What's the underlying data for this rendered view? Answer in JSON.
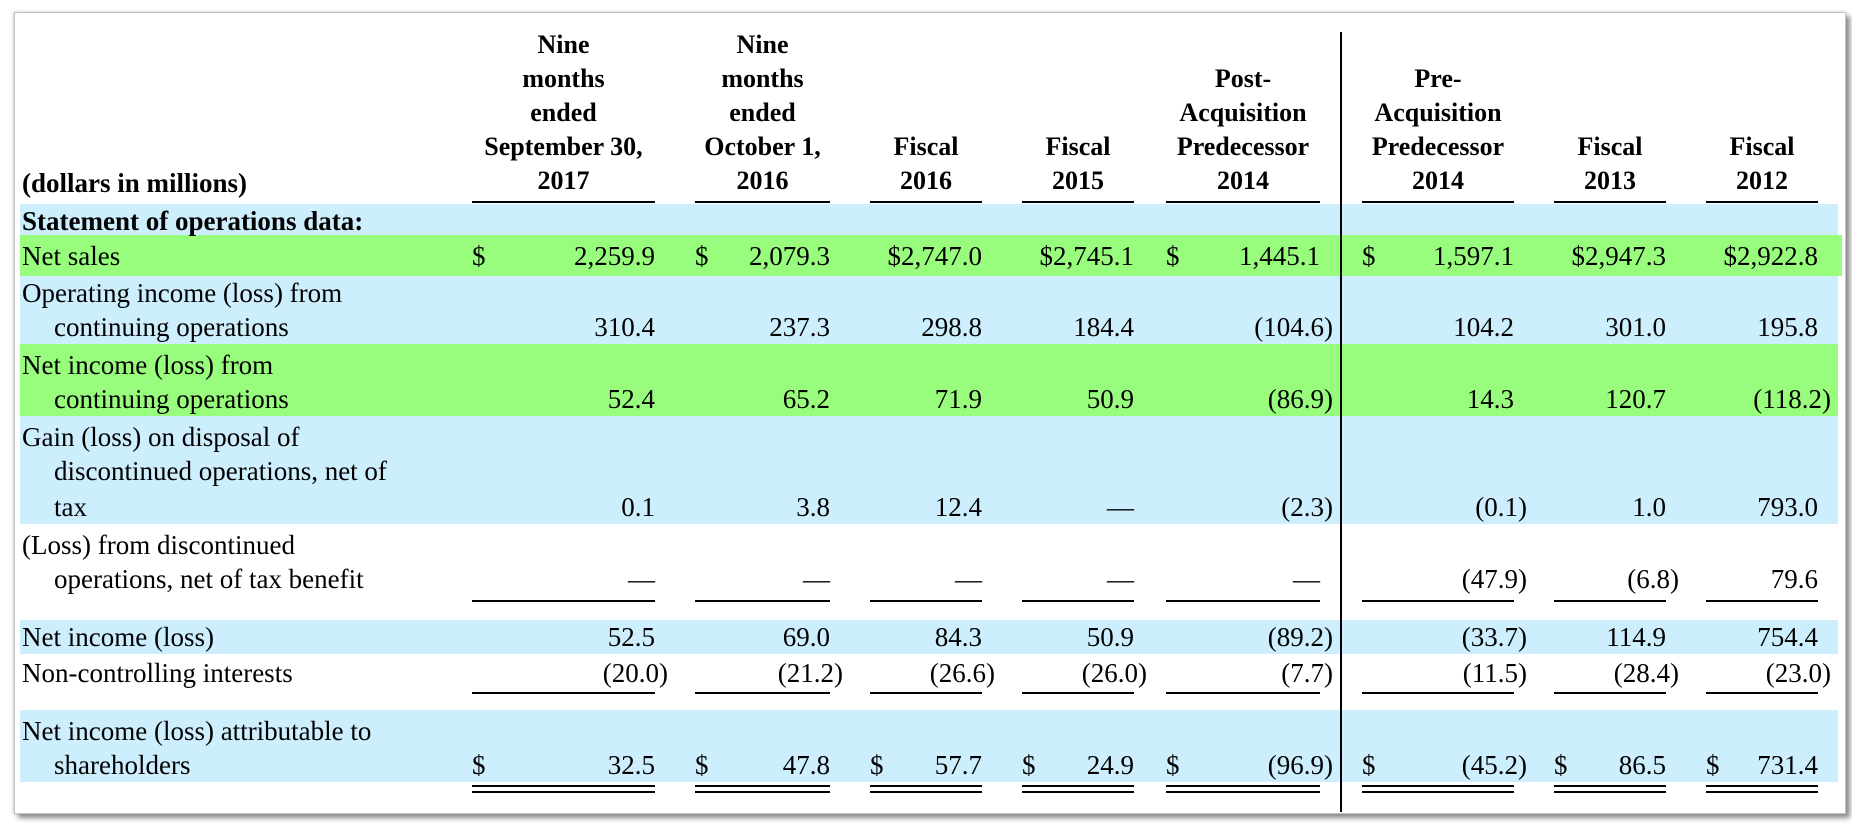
{
  "table": {
    "units_label": "(dollars in millions)",
    "columns": [
      {
        "lines": [
          "Nine",
          "months",
          "ended",
          "September 30,",
          "2017"
        ]
      },
      {
        "lines": [
          "Nine",
          "months",
          "ended",
          "October 1,",
          "2016"
        ]
      },
      {
        "lines": [
          "Fiscal",
          "2016"
        ]
      },
      {
        "lines": [
          "Fiscal",
          "2015"
        ]
      },
      {
        "lines": [
          "Post-",
          "Acquisition",
          "Predecessor",
          "2014"
        ]
      },
      {
        "lines": [
          "Pre-",
          "Acquisition",
          "Predecessor",
          "2014"
        ]
      },
      {
        "lines": [
          "Fiscal",
          "2013"
        ]
      },
      {
        "lines": [
          "Fiscal",
          "2012"
        ]
      }
    ],
    "section_title": "Statement of operations data:",
    "rows": [
      {
        "label": [
          "Net sales"
        ],
        "cells": [
          {
            "sym": "$",
            "val": "2,259.9"
          },
          {
            "sym": "$",
            "val": "2,079.3"
          },
          {
            "sym": "",
            "val": "$2,747.0"
          },
          {
            "sym": "",
            "val": "$2,745.1"
          },
          {
            "sym": "$",
            "val": "1,445.1"
          },
          {
            "sym": "$",
            "val": "1,597.1"
          },
          {
            "sym": "",
            "val": "$2,947.3"
          },
          {
            "sym": "",
            "val": "$2,922.8"
          }
        ]
      },
      {
        "label": [
          "Operating income (loss) from",
          "continuing operations"
        ],
        "cells": [
          {
            "sym": "",
            "val": "310.4"
          },
          {
            "sym": "",
            "val": "237.3"
          },
          {
            "sym": "",
            "val": "298.8"
          },
          {
            "sym": "",
            "val": "184.4"
          },
          {
            "sym": "",
            "val": "(104.6)"
          },
          {
            "sym": "",
            "val": "104.2"
          },
          {
            "sym": "",
            "val": "301.0"
          },
          {
            "sym": "",
            "val": "195.8"
          }
        ]
      },
      {
        "label": [
          "Net income (loss) from",
          "continuing operations"
        ],
        "cells": [
          {
            "sym": "",
            "val": "52.4"
          },
          {
            "sym": "",
            "val": "65.2"
          },
          {
            "sym": "",
            "val": "71.9"
          },
          {
            "sym": "",
            "val": "50.9"
          },
          {
            "sym": "",
            "val": "(86.9)"
          },
          {
            "sym": "",
            "val": "14.3"
          },
          {
            "sym": "",
            "val": "120.7"
          },
          {
            "sym": "",
            "val": "(118.2)"
          }
        ]
      },
      {
        "label": [
          "Gain (loss) on disposal of",
          "discontinued operations, net of",
          "tax"
        ],
        "cells": [
          {
            "sym": "",
            "val": "0.1"
          },
          {
            "sym": "",
            "val": "3.8"
          },
          {
            "sym": "",
            "val": "12.4"
          },
          {
            "sym": "",
            "val": "—"
          },
          {
            "sym": "",
            "val": "(2.3)"
          },
          {
            "sym": "",
            "val": "(0.1)"
          },
          {
            "sym": "",
            "val": "1.0"
          },
          {
            "sym": "",
            "val": "793.0"
          }
        ]
      },
      {
        "label": [
          "(Loss) from discontinued",
          "operations, net of tax benefit"
        ],
        "cells": [
          {
            "sym": "",
            "val": "—"
          },
          {
            "sym": "",
            "val": "—"
          },
          {
            "sym": "",
            "val": "—"
          },
          {
            "sym": "",
            "val": "—"
          },
          {
            "sym": "",
            "val": "—"
          },
          {
            "sym": "",
            "val": "(47.9)"
          },
          {
            "sym": "",
            "val": "(6.8)"
          },
          {
            "sym": "",
            "val": "79.6"
          }
        ]
      },
      {
        "label": [
          "Net income (loss)"
        ],
        "cells": [
          {
            "sym": "",
            "val": "52.5"
          },
          {
            "sym": "",
            "val": "69.0"
          },
          {
            "sym": "",
            "val": "84.3"
          },
          {
            "sym": "",
            "val": "50.9"
          },
          {
            "sym": "",
            "val": "(89.2)"
          },
          {
            "sym": "",
            "val": "(33.7)"
          },
          {
            "sym": "",
            "val": "114.9"
          },
          {
            "sym": "",
            "val": "754.4"
          }
        ]
      },
      {
        "label": [
          "Non-controlling interests"
        ],
        "cells": [
          {
            "sym": "",
            "val": "(20.0)"
          },
          {
            "sym": "",
            "val": "(21.2)"
          },
          {
            "sym": "",
            "val": "(26.6)"
          },
          {
            "sym": "",
            "val": "(26.0)"
          },
          {
            "sym": "",
            "val": "(7.7)"
          },
          {
            "sym": "",
            "val": "(11.5)"
          },
          {
            "sym": "",
            "val": "(28.4)"
          },
          {
            "sym": "",
            "val": "(23.0)"
          }
        ]
      },
      {
        "label": [
          "Net income (loss) attributable to",
          "shareholders"
        ],
        "cells": [
          {
            "sym": "$",
            "val": "32.5"
          },
          {
            "sym": "$",
            "val": "47.8"
          },
          {
            "sym": "$",
            "val": "57.7"
          },
          {
            "sym": "$",
            "val": "24.9"
          },
          {
            "sym": "$",
            "val": "(96.9)"
          },
          {
            "sym": "$",
            "val": "(45.2)"
          },
          {
            "sym": "$",
            "val": "86.5"
          },
          {
            "sym": "$",
            "val": "731.4"
          }
        ]
      }
    ],
    "colors": {
      "band_blue": "#cdeefc",
      "band_green": "#98fc7c",
      "rule": "#000000"
    }
  }
}
